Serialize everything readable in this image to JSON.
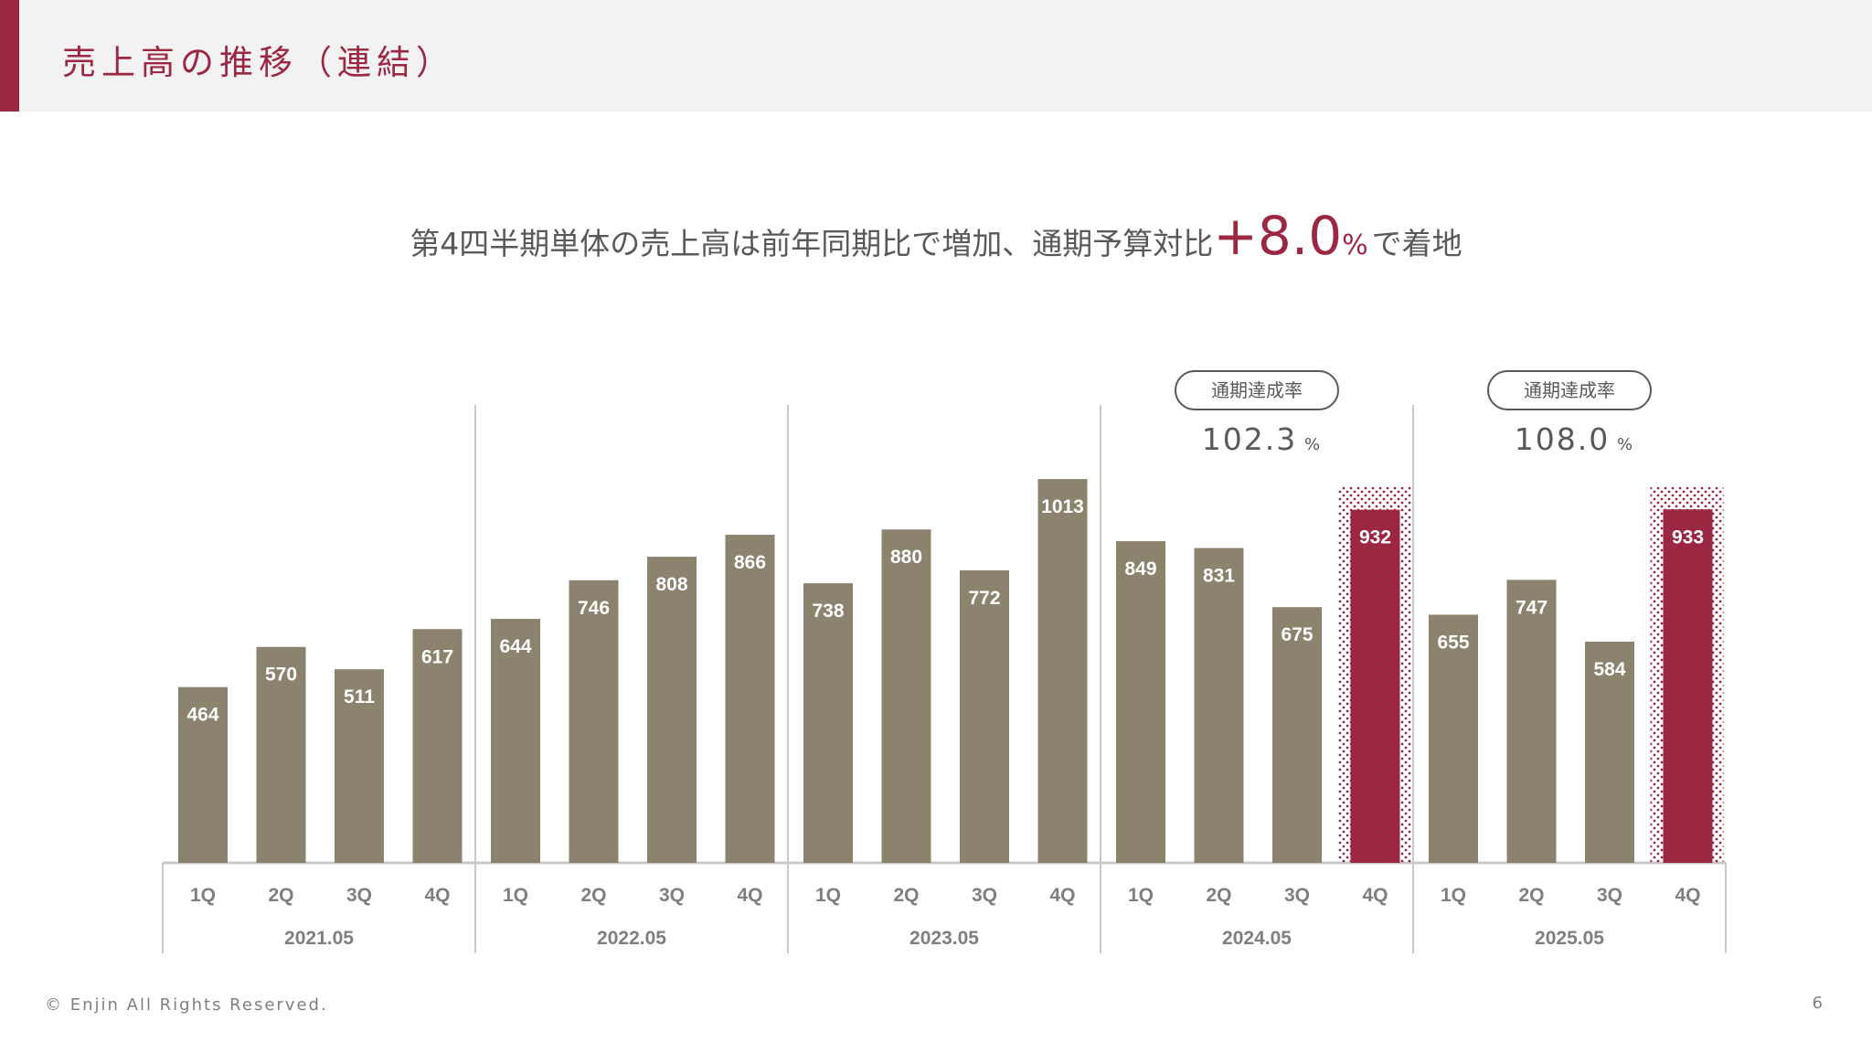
{
  "header": {
    "title": "売上高の推移（連結）",
    "accent_color": "#9b2743"
  },
  "headline": {
    "prefix": "第4四半期単体の売上高は前年同期比で増加、通期予算対比",
    "value": "+8.0",
    "unit": "%",
    "suffix": "で着地"
  },
  "chart_data": {
    "type": "bar",
    "groups": [
      "2021.05",
      "2022.05",
      "2023.05",
      "2024.05",
      "2025.05"
    ],
    "quarters": [
      "1Q",
      "2Q",
      "3Q",
      "4Q"
    ],
    "values": [
      [
        464,
        570,
        511,
        617
      ],
      [
        644,
        746,
        808,
        866
      ],
      [
        738,
        880,
        772,
        1013
      ],
      [
        849,
        831,
        675,
        932
      ],
      [
        655,
        747,
        584,
        933
      ]
    ],
    "highlight": [
      {
        "group_index": 3,
        "quarter_index": 3
      },
      {
        "group_index": 4,
        "quarter_index": 3
      }
    ],
    "achievement": [
      {
        "group_index": 3,
        "label": "通期達成率",
        "value": "102.3",
        "unit": "%"
      },
      {
        "group_index": 4,
        "label": "通期達成率",
        "value": "108.0",
        "unit": "%"
      }
    ],
    "bar_color": "#8b836e",
    "highlight_color": "#9b2743"
  },
  "footer": {
    "copyright": "© Enjin All Rights Reserved.",
    "page_number": "6"
  }
}
